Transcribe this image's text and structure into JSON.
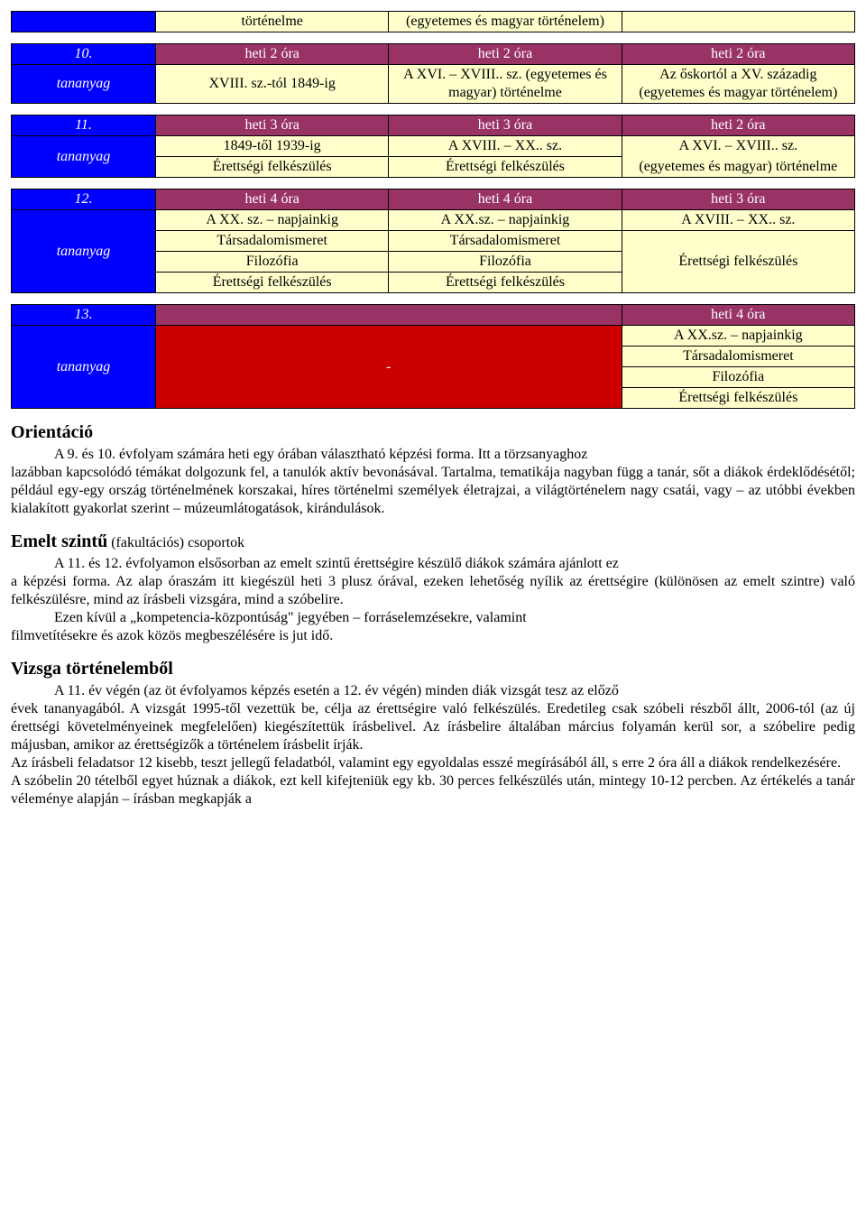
{
  "tables": {
    "t0": {
      "row0": {
        "c0": "",
        "c1": "történelme",
        "c2": "(egyetemes és magyar történelem)",
        "c3": ""
      }
    },
    "t10": {
      "header": {
        "c0": "10.",
        "c1": "heti 2 óra",
        "c2": "heti 2 óra",
        "c3": "heti 2 óra"
      },
      "row1": {
        "c0": "tananyag",
        "c1": "XVIII. sz.-tól 1849-ig",
        "c2": "A XVI. – XVIII.. sz. (egyetemes és magyar) történelme",
        "c3": "Az őskortól a XV. századig (egyetemes és magyar történelem)"
      }
    },
    "t11": {
      "header": {
        "c0": "11.",
        "c1": "heti 3 óra",
        "c2": "heti 3 óra",
        "c3": "heti 2 óra"
      },
      "row1": {
        "c0": "tananyag",
        "c1": "1849-től 1939-ig",
        "c2": "A XVIII. – XX.. sz.",
        "c3a": "A XVI. – XVIII.. sz."
      },
      "row2": {
        "c1": "Érettségi felkészülés",
        "c2": "Érettségi felkészülés",
        "c3b": "(egyetemes és magyar) történelme"
      }
    },
    "t12": {
      "header": {
        "c0": "12.",
        "c1": "heti 4 óra",
        "c2": "heti 4 óra",
        "c3": "heti 3 óra"
      },
      "row1": {
        "c0": "tananyag",
        "c1": "A XX. sz. – napjainkig",
        "c2": "A XX.sz. – napjainkig",
        "c3": "A XVIII. – XX.. sz."
      },
      "row2": {
        "c1": "Társadalomismeret",
        "c2": "Társadalomismeret",
        "c3": "Érettségi felkészülés"
      },
      "row3": {
        "c1": "Filozófia",
        "c2": "Filozófia"
      },
      "row4": {
        "c1": "Érettségi felkészülés",
        "c2": "Érettségi felkészülés"
      }
    },
    "t13": {
      "header": {
        "c0": "13.",
        "c3": "heti 4 óra"
      },
      "row1": {
        "c0": "tananyag",
        "dash": "-",
        "c3": "A XX.sz. – napjainkig"
      },
      "row2": {
        "c3": "Társadalomismeret"
      },
      "row3": {
        "c3": "Filozófia"
      },
      "row4": {
        "c3": "Érettségi felkészülés"
      }
    }
  },
  "sections": {
    "orientacio": {
      "title": "Orientáció",
      "lead": "A 9. és 10. évfolyam számára heti egy órában választható képzési forma. Itt a törzsanyaghoz",
      "body": "lazábban kapcsolódó témákat dolgozunk fel, a tanulók aktív bevonásával. Tartalma, tematikája nagyban függ a tanár, sőt a diákok érdeklődésétől; például egy-egy ország történelmének korszakai, híres történelmi személyek életrajzai, a világtörténelem nagy csatái, vagy – az utóbbi években kialakított gyakorlat szerint – múzeumlátogatások, kirándulások."
    },
    "emelt": {
      "title": "Emelt szintű",
      "title_paren": " (fakultációs) csoportok",
      "lead": "A 11. és 12. évfolyamon elsősorban az emelt szintű érettségire készülő diákok számára ajánlott ez",
      "body1": "a képzési forma. Az alap óraszám itt kiegészül heti 3 plusz órával, ezeken lehetőség nyílik az érettségire (különösen az emelt szintre) való felkészülésre, mind az írásbeli vizsgára, mind a szóbelire.",
      "lead2": "Ezen kívül a „kompetencia-központúság\" jegyében – forráselemzésekre, valamint",
      "body2": "filmvetítésekre és azok közös megbeszélésére is jut idő."
    },
    "vizsga": {
      "title": "Vizsga történelemből",
      "lead": "A 11. év végén (az öt évfolyamos képzés esetén a 12. év végén) minden diák vizsgát tesz az előző",
      "body1": "évek tananyagából. A vizsgát 1995-től vezettük be, célja az érettségire való felkészülés. Eredetileg csak szóbeli részből állt, 2006-tól (az új érettségi követelményeinek megfelelően) kiegészítettük írásbelivel. Az írásbelire általában március folyamán kerül sor, a szóbelire pedig májusban, amikor az érettségizők a történelem írásbelit írják.",
      "body2": "Az írásbeli feladatsor 12 kisebb, teszt jellegű feladatból, valamint egy egyoldalas esszé megírásából áll, s erre 2 óra áll a diákok rendelkezésére.",
      "body3": "A szóbelin 20 tételből egyet húznak a diákok, ezt kell kifejteniük egy kb. 30 perces felkészülés után, mintegy 10-12 percben. Az értékelés a tanár véleménye alapján – írásban megkapják a"
    }
  }
}
